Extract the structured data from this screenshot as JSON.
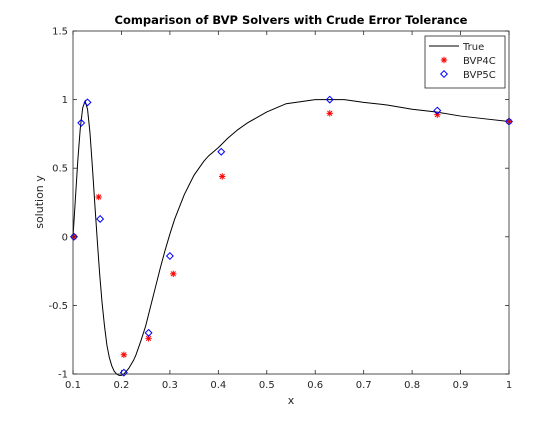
{
  "chart_data": {
    "type": "line",
    "title": "Comparison of BVP Solvers with Crude Error Tolerance",
    "xlabel": "x",
    "ylabel": "solution y",
    "xlim": [
      0.1,
      1.0
    ],
    "ylim": [
      -1.0,
      1.5
    ],
    "xticks": [
      "0.1",
      "0.2",
      "0.3",
      "0.4",
      "0.5",
      "0.6",
      "0.7",
      "0.8",
      "0.9",
      "1"
    ],
    "yticks": [
      "-1",
      "-0.5",
      "0",
      "0.5",
      "1",
      "1.5"
    ],
    "grid": false,
    "legend_position": "top-right",
    "series": [
      {
        "name": "True",
        "style": "line",
        "color": "#000000",
        "x": [
          0.1,
          0.105,
          0.11,
          0.115,
          0.12,
          0.125,
          0.13,
          0.135,
          0.14,
          0.145,
          0.15,
          0.155,
          0.16,
          0.165,
          0.17,
          0.175,
          0.18,
          0.185,
          0.19,
          0.195,
          0.2,
          0.205,
          0.21,
          0.215,
          0.22,
          0.225,
          0.23,
          0.24,
          0.25,
          0.26,
          0.27,
          0.28,
          0.29,
          0.3,
          0.31,
          0.32,
          0.33,
          0.34,
          0.35,
          0.36,
          0.37,
          0.38,
          0.39,
          0.4,
          0.42,
          0.44,
          0.46,
          0.48,
          0.5,
          0.52,
          0.54,
          0.56,
          0.58,
          0.6,
          0.62,
          0.64,
          0.66,
          0.68,
          0.7,
          0.75,
          0.8,
          0.85,
          0.9,
          0.95,
          1.0
        ],
        "y": [
          0.0,
          0.28,
          0.56,
          0.79,
          0.94,
          0.99,
          0.93,
          0.76,
          0.51,
          0.24,
          -0.02,
          -0.27,
          -0.48,
          -0.65,
          -0.79,
          -0.88,
          -0.94,
          -0.98,
          -1.0,
          -1.01,
          -1.01,
          -1.0,
          -0.98,
          -0.96,
          -0.93,
          -0.9,
          -0.86,
          -0.76,
          -0.65,
          -0.51,
          -0.37,
          -0.23,
          -0.1,
          0.02,
          0.13,
          0.22,
          0.31,
          0.38,
          0.45,
          0.5,
          0.55,
          0.59,
          0.62,
          0.65,
          0.72,
          0.78,
          0.83,
          0.87,
          0.91,
          0.94,
          0.97,
          0.98,
          0.99,
          1.0,
          1.0,
          1.0,
          1.0,
          0.99,
          0.98,
          0.96,
          0.93,
          0.91,
          0.88,
          0.86,
          0.84
        ]
      },
      {
        "name": "BVP4C",
        "style": "marker",
        "marker": "*",
        "color": "#ff0000",
        "x": [
          0.102,
          0.153,
          0.205,
          0.256,
          0.307,
          0.408,
          0.63,
          0.852,
          1.0
        ],
        "y": [
          0.0,
          0.29,
          -0.86,
          -0.74,
          -0.27,
          0.44,
          0.9,
          0.89,
          0.84
        ]
      },
      {
        "name": "BVP5C",
        "style": "marker",
        "marker": "diamond",
        "color": "#0000ff",
        "x": [
          0.102,
          0.117,
          0.13,
          0.156,
          0.205,
          0.256,
          0.3,
          0.406,
          0.63,
          0.852,
          1.0
        ],
        "y": [
          0.0,
          0.83,
          0.98,
          0.13,
          -0.99,
          -0.7,
          -0.14,
          0.62,
          1.0,
          0.92,
          0.84
        ]
      }
    ]
  }
}
